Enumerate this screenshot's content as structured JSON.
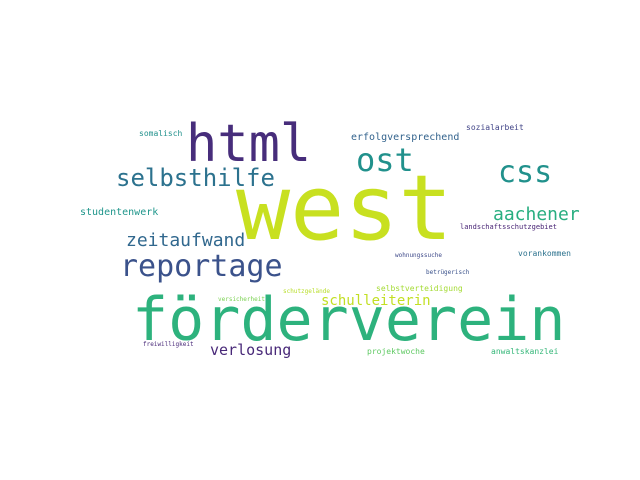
{
  "word_cloud": {
    "words": [
      {
        "text": "west",
        "color": "#c8e020"
      },
      {
        "text": "förderverein",
        "color": "#2db27d"
      },
      {
        "text": "html",
        "color": "#472d7b"
      },
      {
        "text": "reportage",
        "color": "#3b528b"
      },
      {
        "text": "ost",
        "color": "#21918c"
      },
      {
        "text": "css",
        "color": "#21918c"
      },
      {
        "text": "selbsthilfe",
        "color": "#2c728e"
      },
      {
        "text": "aachener",
        "color": "#28ae80"
      },
      {
        "text": "zeitaufwand",
        "color": "#31688e"
      },
      {
        "text": "verlosung",
        "color": "#482878"
      },
      {
        "text": "schulleiterin",
        "color": "#c2df23"
      },
      {
        "text": "erfolgversprechend",
        "color": "#33638d"
      },
      {
        "text": "studentenwerk",
        "color": "#1f968b"
      },
      {
        "text": "sozialarbeit",
        "color": "#414487"
      },
      {
        "text": "somalisch",
        "color": "#21918c"
      },
      {
        "text": "landschaftsschutzgebiet",
        "color": "#482475"
      },
      {
        "text": "wohnungssuche",
        "color": "#3e4989"
      },
      {
        "text": "vorankommen",
        "color": "#2c728e"
      },
      {
        "text": "betrügerisch",
        "color": "#3b528b"
      },
      {
        "text": "selbstverteidigung",
        "color": "#a5db36"
      },
      {
        "text": "schutzgelände",
        "color": "#b8de29"
      },
      {
        "text": "versicherheit",
        "color": "#7ad151"
      },
      {
        "text": "freiwilligkeit",
        "color": "#482878"
      },
      {
        "text": "projektwoche",
        "color": "#5ec962"
      },
      {
        "text": "anwaltskanzlei",
        "color": "#35b779"
      }
    ]
  }
}
